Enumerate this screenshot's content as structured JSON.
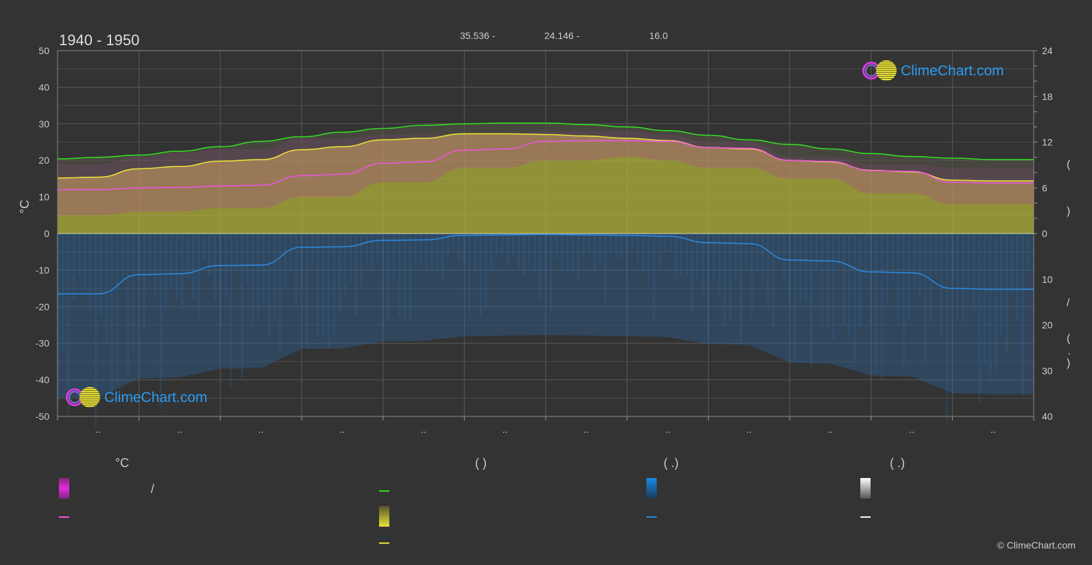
{
  "chart_data": {
    "type": "area",
    "title": "1940 - 1950",
    "top_stats": [
      "35.536 -",
      "24.146 -",
      "16.0"
    ],
    "y_left": {
      "label": "°C",
      "min": -50,
      "max": 50,
      "ticks": [
        50,
        40,
        30,
        20,
        10,
        0,
        -10,
        -20,
        -30,
        -40,
        -50
      ]
    },
    "y_right_top": {
      "min": 0,
      "max": 24,
      "ticks": [
        24,
        18,
        12,
        6,
        0
      ]
    },
    "y_right_bottom": {
      "min": 0,
      "max": 40,
      "ticks": [
        0,
        10,
        20,
        30,
        40
      ]
    },
    "x_categories": [
      "..",
      "..",
      "..",
      "..",
      "..",
      "..",
      "..",
      "..",
      "..",
      "..",
      "..",
      ".."
    ],
    "grid": true,
    "series": [
      {
        "color": "#33dd22",
        "axis": "right_top",
        "unit": "h",
        "x": [
          0,
          0.5,
          1,
          1.5,
          2,
          2.5,
          3,
          3.5,
          4,
          4.5,
          5,
          5.5,
          6,
          6.5,
          7,
          7.5,
          8,
          8.5,
          9,
          9.5,
          10,
          10.5,
          11,
          11.5,
          12
        ],
        "values": [
          9.8,
          10.0,
          10.3,
          10.8,
          11.4,
          12.1,
          12.7,
          13.3,
          13.8,
          14.2,
          14.4,
          14.5,
          14.5,
          14.3,
          14.0,
          13.5,
          12.9,
          12.3,
          11.7,
          11.1,
          10.5,
          10.1,
          9.9,
          9.7,
          9.7
        ]
      },
      {
        "color": "#e8e23a",
        "axis": "right_top",
        "unit": "h",
        "x": [
          0,
          0.5,
          1,
          1.5,
          2,
          2.5,
          3,
          3.5,
          4,
          4.5,
          5,
          5.5,
          6,
          6.5,
          7,
          7.5,
          8,
          8.5,
          9,
          9.5,
          10,
          10.5,
          11,
          11.5,
          12
        ],
        "values": [
          7.3,
          7.4,
          8.5,
          8.8,
          9.5,
          9.7,
          11.0,
          11.4,
          12.3,
          12.5,
          13.1,
          13.1,
          13.0,
          12.8,
          12.5,
          12.2,
          11.3,
          11.1,
          9.6,
          9.4,
          8.3,
          8.1,
          7.0,
          6.9,
          6.9
        ]
      },
      {
        "color": "#ee55dd",
        "axis": "left",
        "unit": "°C",
        "x": [
          0,
          0.5,
          1,
          1.5,
          2,
          2.5,
          3,
          3.5,
          4,
          4.5,
          5,
          5.5,
          6,
          6.5,
          7,
          7.5,
          8,
          8.5,
          9,
          9.5,
          10,
          10.5,
          11,
          11.5,
          12
        ],
        "values": [
          12.0,
          12.0,
          12.5,
          12.6,
          13.0,
          13.2,
          15.8,
          16.2,
          19.2,
          19.6,
          22.8,
          23.1,
          25.2,
          25.4,
          25.4,
          25.2,
          23.5,
          23.3,
          20.0,
          19.7,
          17.2,
          17.0,
          14.0,
          13.8,
          13.8
        ]
      },
      {
        "color": "#2a8ae0",
        "axis": "right_bottom",
        "unit": "mm",
        "x": [
          0,
          0.5,
          1,
          1.5,
          2,
          2.5,
          3,
          3.5,
          4,
          4.5,
          5,
          5.5,
          6,
          6.5,
          7,
          7.5,
          8,
          8.5,
          9,
          9.5,
          10,
          10.5,
          11,
          11.5,
          12
        ],
        "values": [
          13.2,
          13.2,
          9.0,
          8.8,
          7.0,
          6.9,
          3.0,
          2.9,
          1.5,
          1.4,
          0.4,
          0.3,
          0.2,
          0.3,
          0.4,
          0.6,
          2.0,
          2.2,
          5.8,
          6.0,
          8.4,
          8.6,
          12.0,
          12.2,
          12.2
        ]
      }
    ],
    "area_bands": {
      "temp_range_top": [
        19,
        19,
        21,
        22,
        23,
        23,
        26,
        26,
        27,
        27,
        27,
        27,
        28,
        28,
        28,
        27,
        25,
        25,
        21,
        21,
        19,
        19,
        18,
        18,
        18
      ],
      "temp_range_bottom": [
        5,
        5,
        6,
        6,
        7,
        7,
        10,
        10,
        14,
        14,
        18,
        18,
        20,
        20,
        21,
        20,
        18,
        18,
        15,
        15,
        11,
        11,
        8,
        8,
        8
      ]
    }
  },
  "legend": {
    "headers": [
      "°C",
      "(          )",
      "(   .)",
      "(   .)"
    ],
    "separator": "/"
  },
  "logos": [
    "ClimeChart.com",
    "ClimeChart.com"
  ],
  "copyright": "© ClimeChart.com",
  "right_axis_marks": [
    "(",
    ")",
    "/",
    "(",
    "·",
    ")"
  ],
  "colors": {
    "background": "#333333",
    "grid": "#5a5a5a",
    "sun_fill": "#b5b53a",
    "rain_fill": "#2a6aa8",
    "temp_band": "#b03aa8",
    "logo_text": "#2a9df4"
  }
}
